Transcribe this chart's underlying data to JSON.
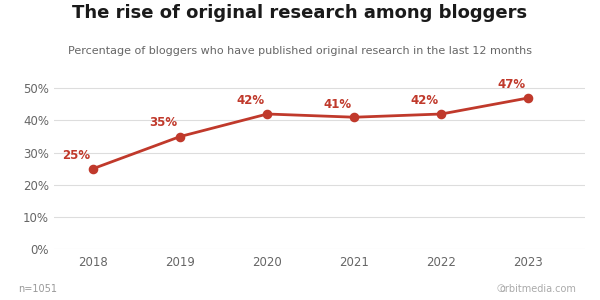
{
  "title": "The rise of original research among bloggers",
  "subtitle": "Percentage of bloggers who have published original research in the last 12 months",
  "years": [
    2018,
    2019,
    2020,
    2021,
    2022,
    2023
  ],
  "values": [
    0.25,
    0.35,
    0.42,
    0.41,
    0.42,
    0.47
  ],
  "labels": [
    "25%",
    "35%",
    "42%",
    "41%",
    "42%",
    "47%"
  ],
  "line_color": "#c0392b",
  "bg_color": "#ffffff",
  "grid_color": "#dddddd",
  "title_fontsize": 13,
  "subtitle_fontsize": 8,
  "label_fontsize": 8.5,
  "tick_fontsize": 8.5,
  "footnote": "n=1051",
  "watermark": "orbitmedia.com",
  "ylim": [
    0,
    0.56
  ],
  "yticks": [
    0.0,
    0.1,
    0.2,
    0.3,
    0.4,
    0.5
  ]
}
